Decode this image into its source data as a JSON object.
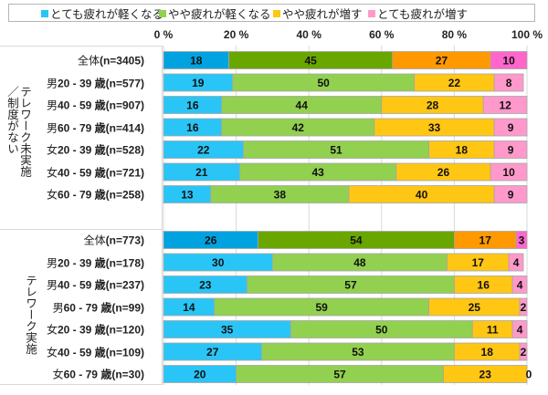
{
  "chart_data": {
    "type": "bar",
    "orientation": "horizontal",
    "stacked": "percent",
    "title": "",
    "xlabel": "",
    "ylabel": "",
    "xlim": [
      0,
      100
    ],
    "xticks": [
      "0 %",
      "20 %",
      "40 %",
      "60 %",
      "80 %",
      "100 %"
    ],
    "grid": true,
    "legend_position": "top",
    "legend": [
      {
        "name": "とても疲れが軽くなる",
        "color": "#29c5f6"
      },
      {
        "name": "やや疲れが軽くなる",
        "color": "#92d050"
      },
      {
        "name": "やや疲れが増す",
        "color": "#ffc614"
      },
      {
        "name": "とても疲れが増す",
        "color": "#ff99cc"
      }
    ],
    "total_colors": [
      "#00a3e0",
      "#6aa600",
      "#ff9900",
      "#ff66cc"
    ],
    "groups": [
      {
        "name": "テレワーク未実施／制度がない",
        "label_lines": [
          "テレワーク未実施",
          "／制度がない"
        ],
        "rows": [
          {
            "prefix": "全体",
            "label": "(n=3405)",
            "total": true,
            "values": [
              18,
              45,
              27,
              10
            ]
          },
          {
            "prefix": "男",
            "label": "20 - 39 歳(n=577)",
            "total": false,
            "values": [
              19,
              50,
              22,
              8
            ]
          },
          {
            "prefix": "男",
            "label": "40 - 59 歳(n=907)",
            "total": false,
            "values": [
              16,
              44,
              28,
              12
            ]
          },
          {
            "prefix": "男",
            "label": "60 - 79 歳(n=414)",
            "total": false,
            "values": [
              16,
              42,
              33,
              9
            ]
          },
          {
            "prefix": "女",
            "label": "20 - 39 歳(n=528)",
            "total": false,
            "values": [
              22,
              51,
              18,
              9
            ]
          },
          {
            "prefix": "女",
            "label": "40 - 59 歳(n=721)",
            "total": false,
            "values": [
              21,
              43,
              26,
              10
            ]
          },
          {
            "prefix": "女",
            "label": "60 - 79 歳(n=258)",
            "total": false,
            "values": [
              13,
              38,
              40,
              9
            ]
          }
        ]
      },
      {
        "name": "テレワーク実施",
        "label_lines": [
          "テレワーク実施"
        ],
        "rows": [
          {
            "prefix": "全体",
            "label": "(n=773)",
            "total": true,
            "values": [
              26,
              54,
              17,
              3
            ]
          },
          {
            "prefix": "男",
            "label": "20 - 39 歳(n=178)",
            "total": false,
            "values": [
              30,
              48,
              17,
              4
            ]
          },
          {
            "prefix": "男",
            "label": "40 - 59 歳(n=237)",
            "total": false,
            "values": [
              23,
              57,
              16,
              4
            ]
          },
          {
            "prefix": "男",
            "label": "60 - 79 歳(n=99)",
            "total": false,
            "values": [
              14,
              59,
              25,
              2
            ]
          },
          {
            "prefix": "女",
            "label": "20 - 39 歳(n=120)",
            "total": false,
            "values": [
              35,
              50,
              11,
              4
            ]
          },
          {
            "prefix": "女",
            "label": "40 - 59 歳(n=109)",
            "total": false,
            "values": [
              27,
              53,
              18,
              2
            ]
          },
          {
            "prefix": "女",
            "label": "60 - 79 歳(n=30)",
            "total": false,
            "values": [
              20,
              57,
              23,
              0
            ]
          }
        ]
      }
    ]
  }
}
